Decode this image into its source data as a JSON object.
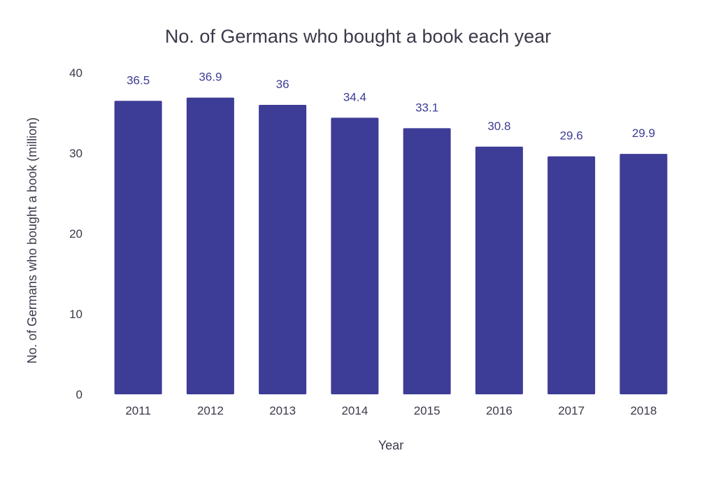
{
  "chart_data": {
    "type": "bar",
    "title": "No. of Germans who bought a book each year",
    "xlabel": "Year",
    "ylabel": "No. of Germans who bought a book (million)",
    "categories": [
      "2011",
      "2012",
      "2013",
      "2014",
      "2015",
      "2016",
      "2017",
      "2018"
    ],
    "values": [
      36.5,
      36.9,
      36,
      34.4,
      33.1,
      30.8,
      29.6,
      29.9
    ],
    "data_labels": [
      "36.5",
      "36.9",
      "36",
      "34.4",
      "33.1",
      "30.8",
      "29.6",
      "29.9"
    ],
    "ylim": [
      0,
      40
    ],
    "y_ticks": [
      0,
      10,
      20,
      30,
      40
    ],
    "grid": false,
    "legend": "none",
    "colors": {
      "bar": "#3d3c96",
      "data_label": "#3d3c96",
      "text": "#3a3a4a"
    }
  }
}
